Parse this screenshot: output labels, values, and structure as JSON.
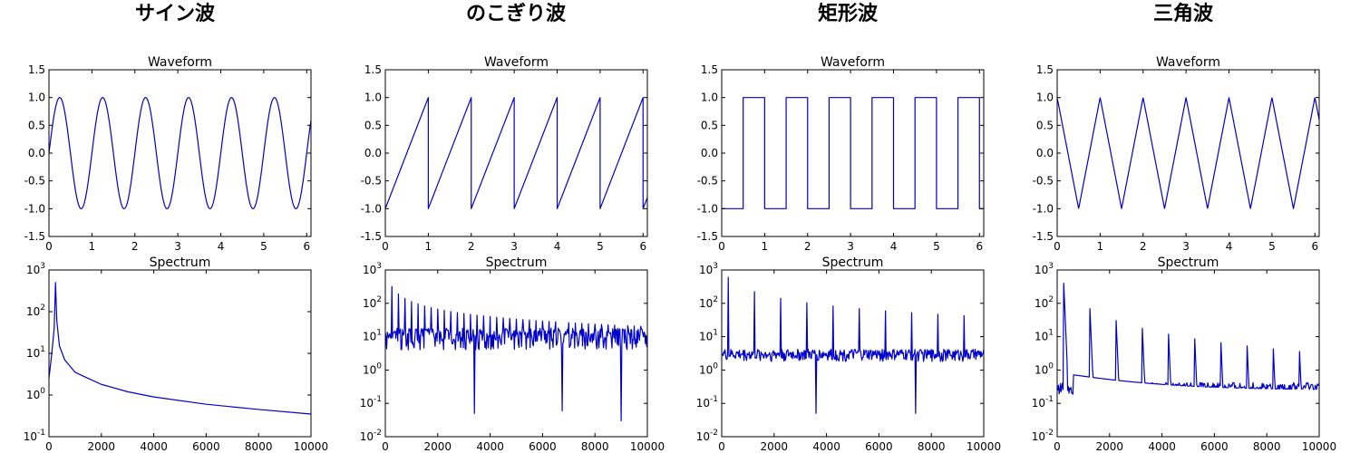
{
  "columns": [
    {
      "title": "サイン波"
    },
    {
      "title": "のこぎり波"
    },
    {
      "title": "矩形波"
    },
    {
      "title": "三角波"
    }
  ],
  "colors": {
    "series": "#0000cc",
    "axes": "#000000",
    "background": "#ffffff"
  },
  "chart_data": [
    {
      "type": "line",
      "column": "サイン波",
      "title": "Waveform",
      "xlim": [
        0,
        6.1
      ],
      "ylim": [
        -1.5,
        1.5
      ],
      "xticks": [
        "0",
        "1",
        "2",
        "3",
        "4",
        "5",
        "6"
      ],
      "yticks": [
        "-1.5",
        "-1.0",
        "-0.5",
        "0.0",
        "0.5",
        "1.0",
        "1.5"
      ],
      "waveform": "sine",
      "period": 1.0,
      "amplitude": 1.0,
      "phase": 0.0
    },
    {
      "type": "line",
      "column": "サイン波",
      "title": "Spectrum",
      "yscale": "log",
      "xlim": [
        0,
        10000
      ],
      "ylim": [
        0.1,
        1000
      ],
      "xticks": [
        "0",
        "2000",
        "4000",
        "6000",
        "8000",
        "10000"
      ],
      "yticks": [
        "10^-1",
        "10^0",
        "10^1",
        "10^2",
        "10^3"
      ],
      "points": [
        [
          0,
          2.5
        ],
        [
          100,
          9
        ],
        [
          200,
          40
        ],
        [
          250,
          500
        ],
        [
          300,
          60
        ],
        [
          400,
          15
        ],
        [
          600,
          7
        ],
        [
          1000,
          3.5
        ],
        [
          1500,
          2.5
        ],
        [
          2000,
          1.8
        ],
        [
          3000,
          1.2
        ],
        [
          4000,
          0.9
        ],
        [
          6000,
          0.6
        ],
        [
          8000,
          0.45
        ],
        [
          10000,
          0.35
        ]
      ]
    },
    {
      "type": "line",
      "column": "のこぎり波",
      "title": "Waveform",
      "xlim": [
        0,
        6.1
      ],
      "ylim": [
        -1.5,
        1.5
      ],
      "xticks": [
        "0",
        "1",
        "2",
        "3",
        "4",
        "5",
        "6"
      ],
      "yticks": [
        "-1.5",
        "-1.0",
        "-0.5",
        "0.0",
        "0.5",
        "1.0",
        "1.5"
      ],
      "waveform": "sawtooth",
      "period": 1.0,
      "amplitude": 1.0,
      "phase": 0.0
    },
    {
      "type": "line",
      "column": "のこぎり波",
      "title": "Spectrum",
      "yscale": "log",
      "xlim": [
        0,
        10000
      ],
      "ylim": [
        0.01,
        1000
      ],
      "xticks": [
        "0",
        "2000",
        "4000",
        "6000",
        "8000",
        "10000"
      ],
      "yticks": [
        "10^-2",
        "10^-1",
        "10^0",
        "10^1",
        "10^2",
        "10^3"
      ],
      "fundamental": 250,
      "peak": 320,
      "floor": 10,
      "decay": "harmonic",
      "dips": [
        [
          3400,
          0.05
        ],
        [
          6750,
          0.06
        ],
        [
          9000,
          0.03
        ]
      ]
    },
    {
      "type": "line",
      "column": "矩形波",
      "title": "Waveform",
      "xlim": [
        0,
        6.1
      ],
      "ylim": [
        -1.5,
        1.5
      ],
      "xticks": [
        "0",
        "1",
        "2",
        "3",
        "4",
        "5",
        "6"
      ],
      "yticks": [
        "-1.5",
        "-1.0",
        "-0.5",
        "0.0",
        "0.5",
        "1.0",
        "1.5"
      ],
      "waveform": "square",
      "period": 1.0,
      "amplitude": 1.0,
      "phase": 0.0
    },
    {
      "type": "line",
      "column": "矩形波",
      "title": "Spectrum",
      "yscale": "log",
      "xlim": [
        0,
        10000
      ],
      "ylim": [
        0.01,
        1000
      ],
      "xticks": [
        "0",
        "2000",
        "4000",
        "6000",
        "8000",
        "10000"
      ],
      "yticks": [
        "10^-2",
        "10^-1",
        "10^0",
        "10^1",
        "10^2",
        "10^3"
      ],
      "fundamental": 250,
      "peak": 600,
      "floor": 3,
      "decay": "odd-harmonic",
      "dips": [
        [
          3600,
          0.05
        ],
        [
          7400,
          0.05
        ]
      ]
    },
    {
      "type": "line",
      "column": "三角波",
      "title": "Waveform",
      "xlim": [
        0,
        6.1
      ],
      "ylim": [
        -1.5,
        1.5
      ],
      "xticks": [
        "0",
        "1",
        "2",
        "3",
        "4",
        "5",
        "6"
      ],
      "yticks": [
        "-1.5",
        "-1.0",
        "-0.5",
        "0.0",
        "0.5",
        "1.0",
        "1.5"
      ],
      "waveform": "triangle",
      "period": 1.0,
      "amplitude": 1.0,
      "phase": 0.0
    },
    {
      "type": "line",
      "column": "三角波",
      "title": "Spectrum",
      "yscale": "log",
      "xlim": [
        0,
        10000
      ],
      "ylim": [
        0.01,
        1000
      ],
      "xticks": [
        "0",
        "2000",
        "4000",
        "6000",
        "8000",
        "10000"
      ],
      "yticks": [
        "10^-2",
        "10^-1",
        "10^0",
        "10^1",
        "10^2",
        "10^3"
      ],
      "fundamental": 250,
      "peak": 400,
      "floor": 0.3,
      "decay": "odd-harmonic-squared",
      "dips": []
    }
  ]
}
